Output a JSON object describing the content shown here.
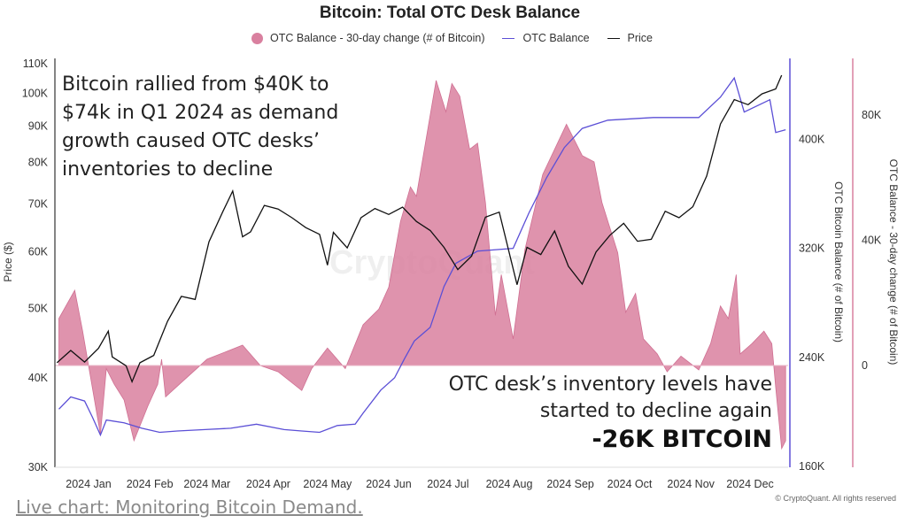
{
  "chart_data": {
    "type": "area+line",
    "title": "Bitcoin: Total OTC Desk Balance",
    "legend": {
      "placement": "top",
      "entries": [
        "OTC Balance - 30-day change (# of Bitcoin)",
        "OTC Balance",
        "Price"
      ]
    },
    "colors": {
      "change": "#d9809f",
      "balance": "#5b4fd6",
      "price": "#111111"
    },
    "x_ticks": [
      "2024 Jan",
      "2024 Feb",
      "2024 Mar",
      "2024 Apr",
      "2024 May",
      "2024 Jun",
      "2024 Jul",
      "2024 Aug",
      "2024 Sep",
      "2024 Oct",
      "2024 Nov",
      "2024 Dec"
    ],
    "axes": {
      "left": {
        "label": "Price ($)",
        "scale": "log",
        "range": [
          30000,
          110000
        ],
        "ticks": [
          "110K",
          "100K",
          "90K",
          "80K",
          "70K",
          "60K",
          "50K",
          "40K",
          "30K"
        ]
      },
      "right1": {
        "label": "OTC Bitcoin Balance (# of Bitcoin)",
        "range": [
          160000,
          440000
        ],
        "ticks": [
          "400K",
          "320K",
          "240K",
          "160K"
        ]
      },
      "right2": {
        "label": "OTC Balance - 30-day change (# of Bitcoin)",
        "range": [
          -32000,
          97000
        ],
        "ticks": [
          "80K",
          "40K",
          "0"
        ]
      }
    },
    "grid": false,
    "series": [
      {
        "name": "Price",
        "axis": "left",
        "points": [
          [
            "2023-12-16",
            42000
          ],
          [
            "2023-12-23",
            43700
          ],
          [
            "2023-12-30",
            42100
          ],
          [
            "2024-01-06",
            44000
          ],
          [
            "2024-01-11",
            46500
          ],
          [
            "2024-01-13",
            42800
          ],
          [
            "2024-01-20",
            41600
          ],
          [
            "2024-01-23",
            39500
          ],
          [
            "2024-01-27",
            42000
          ],
          [
            "2024-02-03",
            43000
          ],
          [
            "2024-02-10",
            48000
          ],
          [
            "2024-02-17",
            52000
          ],
          [
            "2024-02-24",
            51500
          ],
          [
            "2024-03-02",
            62000
          ],
          [
            "2024-03-09",
            68300
          ],
          [
            "2024-03-14",
            73000
          ],
          [
            "2024-03-19",
            63000
          ],
          [
            "2024-03-23",
            64000
          ],
          [
            "2024-03-30",
            69700
          ],
          [
            "2024-04-06",
            68900
          ],
          [
            "2024-04-13",
            67000
          ],
          [
            "2024-04-20",
            64900
          ],
          [
            "2024-04-27",
            63500
          ],
          [
            "2024-05-01",
            57500
          ],
          [
            "2024-05-04",
            63900
          ],
          [
            "2024-05-11",
            60800
          ],
          [
            "2024-05-18",
            67000
          ],
          [
            "2024-05-25",
            69000
          ],
          [
            "2024-06-01",
            67700
          ],
          [
            "2024-06-08",
            69300
          ],
          [
            "2024-06-15",
            66200
          ],
          [
            "2024-06-22",
            64300
          ],
          [
            "2024-06-29",
            60900
          ],
          [
            "2024-07-06",
            56700
          ],
          [
            "2024-07-13",
            59200
          ],
          [
            "2024-07-20",
            67100
          ],
          [
            "2024-07-27",
            68200
          ],
          [
            "2024-08-05",
            54000
          ],
          [
            "2024-08-10",
            60900
          ],
          [
            "2024-08-17",
            59500
          ],
          [
            "2024-08-24",
            64200
          ],
          [
            "2024-08-31",
            57300
          ],
          [
            "2024-09-07",
            54100
          ],
          [
            "2024-09-14",
            60000
          ],
          [
            "2024-09-21",
            63300
          ],
          [
            "2024-09-28",
            65800
          ],
          [
            "2024-10-05",
            62100
          ],
          [
            "2024-10-12",
            62500
          ],
          [
            "2024-10-19",
            68400
          ],
          [
            "2024-10-26",
            67000
          ],
          [
            "2024-11-02",
            69400
          ],
          [
            "2024-11-09",
            76600
          ],
          [
            "2024-11-16",
            90600
          ],
          [
            "2024-11-23",
            98000
          ],
          [
            "2024-11-30",
            96400
          ],
          [
            "2024-12-07",
            99800
          ],
          [
            "2024-12-14",
            101400
          ],
          [
            "2024-12-17",
            106000
          ]
        ]
      },
      {
        "name": "OTC Balance",
        "axis": "right1",
        "points": [
          [
            "2023-12-17",
            202000
          ],
          [
            "2023-12-23",
            211000
          ],
          [
            "2023-12-30",
            208000
          ],
          [
            "2024-01-03",
            196000
          ],
          [
            "2024-01-07",
            183000
          ],
          [
            "2024-01-10",
            194000
          ],
          [
            "2024-01-19",
            192000
          ],
          [
            "2024-01-28",
            188000
          ],
          [
            "2024-02-06",
            185000
          ],
          [
            "2024-02-15",
            186000
          ],
          [
            "2024-02-29",
            187000
          ],
          [
            "2024-03-13",
            188000
          ],
          [
            "2024-03-26",
            191000
          ],
          [
            "2024-04-09",
            187000
          ],
          [
            "2024-04-18",
            186000
          ],
          [
            "2024-04-27",
            185000
          ],
          [
            "2024-05-06",
            190000
          ],
          [
            "2024-05-15",
            191000
          ],
          [
            "2024-05-19",
            199000
          ],
          [
            "2024-05-28",
            216000
          ],
          [
            "2024-06-04",
            225000
          ],
          [
            "2024-06-09",
            239000
          ],
          [
            "2024-06-14",
            252000
          ],
          [
            "2024-06-22",
            262000
          ],
          [
            "2024-06-29",
            292000
          ],
          [
            "2024-07-05",
            309000
          ],
          [
            "2024-07-16",
            318000
          ],
          [
            "2024-08-03",
            320000
          ],
          [
            "2024-08-11",
            346000
          ],
          [
            "2024-08-20",
            372000
          ],
          [
            "2024-08-29",
            394000
          ],
          [
            "2024-09-07",
            408000
          ],
          [
            "2024-09-20",
            414000
          ],
          [
            "2024-10-13",
            416000
          ],
          [
            "2024-11-05",
            416000
          ],
          [
            "2024-11-16",
            431000
          ],
          [
            "2024-11-23",
            445000
          ],
          [
            "2024-11-28",
            420000
          ],
          [
            "2024-12-11",
            429000
          ],
          [
            "2024-12-14",
            405000
          ],
          [
            "2024-12-19",
            407000
          ]
        ]
      },
      {
        "name": "OTC Balance - 30-day change (# of Bitcoin)",
        "axis": "right2",
        "points": [
          [
            "2023-12-17",
            15000
          ],
          [
            "2023-12-25",
            24000
          ],
          [
            "2023-12-29",
            11000
          ],
          [
            "2024-01-07",
            -22000
          ],
          [
            "2024-01-10",
            -1000
          ],
          [
            "2024-01-14",
            -6000
          ],
          [
            "2024-01-19",
            -11000
          ],
          [
            "2024-01-24",
            -24000
          ],
          [
            "2024-01-31",
            -13000
          ],
          [
            "2024-02-05",
            -6000
          ],
          [
            "2024-02-07",
            2000
          ],
          [
            "2024-02-09",
            -10000
          ],
          [
            "2024-02-16",
            -6000
          ],
          [
            "2024-03-01",
            2000
          ],
          [
            "2024-03-19",
            6500
          ],
          [
            "2024-03-28",
            0
          ],
          [
            "2024-04-06",
            -2000
          ],
          [
            "2024-04-18",
            -8000
          ],
          [
            "2024-04-23",
            -1000
          ],
          [
            "2024-05-01",
            5600
          ],
          [
            "2024-05-10",
            -1000
          ],
          [
            "2024-05-19",
            13000
          ],
          [
            "2024-05-27",
            18000
          ],
          [
            "2024-06-01",
            25000
          ],
          [
            "2024-06-07",
            46000
          ],
          [
            "2024-06-12",
            57000
          ],
          [
            "2024-06-15",
            54000
          ],
          [
            "2024-06-25",
            91000
          ],
          [
            "2024-06-30",
            81000
          ],
          [
            "2024-07-03",
            90000
          ],
          [
            "2024-07-07",
            86000
          ],
          [
            "2024-07-12",
            69000
          ],
          [
            "2024-07-16",
            71000
          ],
          [
            "2024-07-20",
            52000
          ],
          [
            "2024-07-25",
            16000
          ],
          [
            "2024-07-28",
            29000
          ],
          [
            "2024-08-03",
            8500
          ],
          [
            "2024-08-09",
            37000
          ],
          [
            "2024-08-18",
            61000
          ],
          [
            "2024-08-30",
            77000
          ],
          [
            "2024-09-07",
            67000
          ],
          [
            "2024-09-13",
            65000
          ],
          [
            "2024-09-17",
            52000
          ],
          [
            "2024-09-25",
            36000
          ],
          [
            "2024-09-29",
            17000
          ],
          [
            "2024-10-04",
            23000
          ],
          [
            "2024-10-08",
            8500
          ],
          [
            "2024-10-15",
            3700
          ],
          [
            "2024-10-20",
            -2000
          ],
          [
            "2024-10-27",
            3000
          ],
          [
            "2024-11-05",
            -1400
          ],
          [
            "2024-11-11",
            7000
          ],
          [
            "2024-11-16",
            19000
          ],
          [
            "2024-11-20",
            15000
          ],
          [
            "2024-11-24",
            29000
          ],
          [
            "2024-11-26",
            3700
          ],
          [
            "2024-12-02",
            7000
          ],
          [
            "2024-12-08",
            11000
          ],
          [
            "2024-12-12",
            7000
          ],
          [
            "2024-12-14",
            -7000
          ],
          [
            "2024-12-17",
            -26500
          ],
          [
            "2024-12-19",
            -24000
          ]
        ]
      }
    ]
  },
  "annotations": {
    "top_left": [
      "Bitcoin rallied from $40K to",
      "$74k in Q1 2024 as demand",
      "growth caused OTC desks’",
      "inventories to decline"
    ],
    "bottom_right": [
      "OTC desk’s inventory levels have",
      "started to decline again"
    ],
    "bottom_right_highlight": "-26K BITCOIN"
  },
  "watermark": "CryptoQuant",
  "footer": {
    "link": "Live chart: Monitoring Bitcoin Demand.",
    "copyright": "© CryptoQuant. All rights reserved"
  }
}
